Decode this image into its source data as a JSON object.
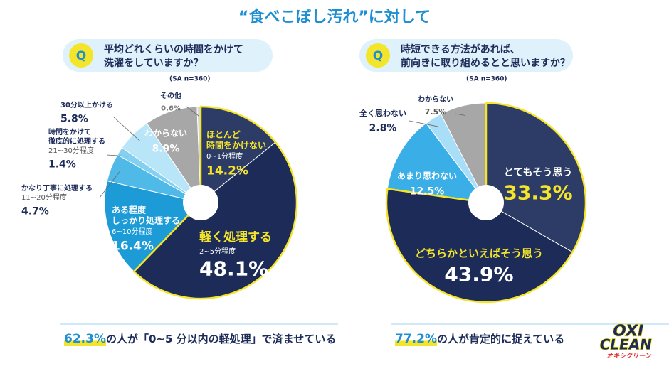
{
  "title": "“食べこぼし汚れ”に対して",
  "chart_data": [
    {
      "type": "pie",
      "question_marker": "Q",
      "question": [
        "平均どれくらいの時間をかけて",
        "洗濯をしていますか？"
      ],
      "note": "(SA n=360)",
      "categories": [
        [
          "ほとんど",
          "時間をかけない"
        ],
        [
          "軽く処理する"
        ],
        [
          "ある程度",
          "しっかり処理する"
        ],
        [
          "かなり丁寧に処理する"
        ],
        [
          "時間をかけて",
          "徹底的に処理する"
        ],
        [
          "30分以上かける"
        ],
        [
          "わからない"
        ],
        [
          "その他"
        ]
      ],
      "sublabels": [
        "0~1分程度",
        "2~5分程度",
        "6~10分程度",
        "11~20分程度",
        "21~30分程度",
        null,
        null,
        null
      ],
      "values": [
        14.2,
        48.1,
        16.4,
        4.7,
        1.4,
        5.8,
        8.9,
        0.6
      ],
      "value_labels": [
        "14.2%",
        "48.1%",
        "16.4%",
        "4.7%",
        "1.4%",
        "5.8%",
        "8.9%",
        "0.6%"
      ],
      "colors": [
        "#2d3c66",
        "#1c2b58",
        "#1c9bd7",
        "#4fb9e8",
        "#84d0f1",
        "#b9e5f8",
        "#a7a7a7",
        "#d6d6d6"
      ],
      "footer": {
        "highlight": "62.3%",
        "text": "の人が「0~5 分以内の軽処理」で済ませている"
      }
    },
    {
      "type": "pie",
      "question_marker": "Q",
      "question": [
        "時短できる方法があれば、",
        "前向きに取り組めるとと思いますか？"
      ],
      "note": "(SA n=360)",
      "categories": [
        [
          "とてもそう思う"
        ],
        [
          "どちらかといえばそう思う"
        ],
        [
          "あまり思わない"
        ],
        [
          "全く思わない"
        ],
        [
          "わからない"
        ]
      ],
      "sublabels": [
        null,
        null,
        null,
        null,
        null
      ],
      "values": [
        33.3,
        43.9,
        12.5,
        2.8,
        7.5
      ],
      "value_labels": [
        "33.3%",
        "43.9%",
        "12.5%",
        "2.8%",
        "7.5%"
      ],
      "colors": [
        "#2d3c66",
        "#1c2b58",
        "#3aaee6",
        "#a9def8",
        "#a7a7a7"
      ],
      "footer": {
        "highlight": "77.2%",
        "text": "の人が肯定的に捉えている"
      }
    }
  ],
  "logo": {
    "top": "OXI",
    "bottom": "CLEAN",
    "sub": "オキシクリーン"
  }
}
